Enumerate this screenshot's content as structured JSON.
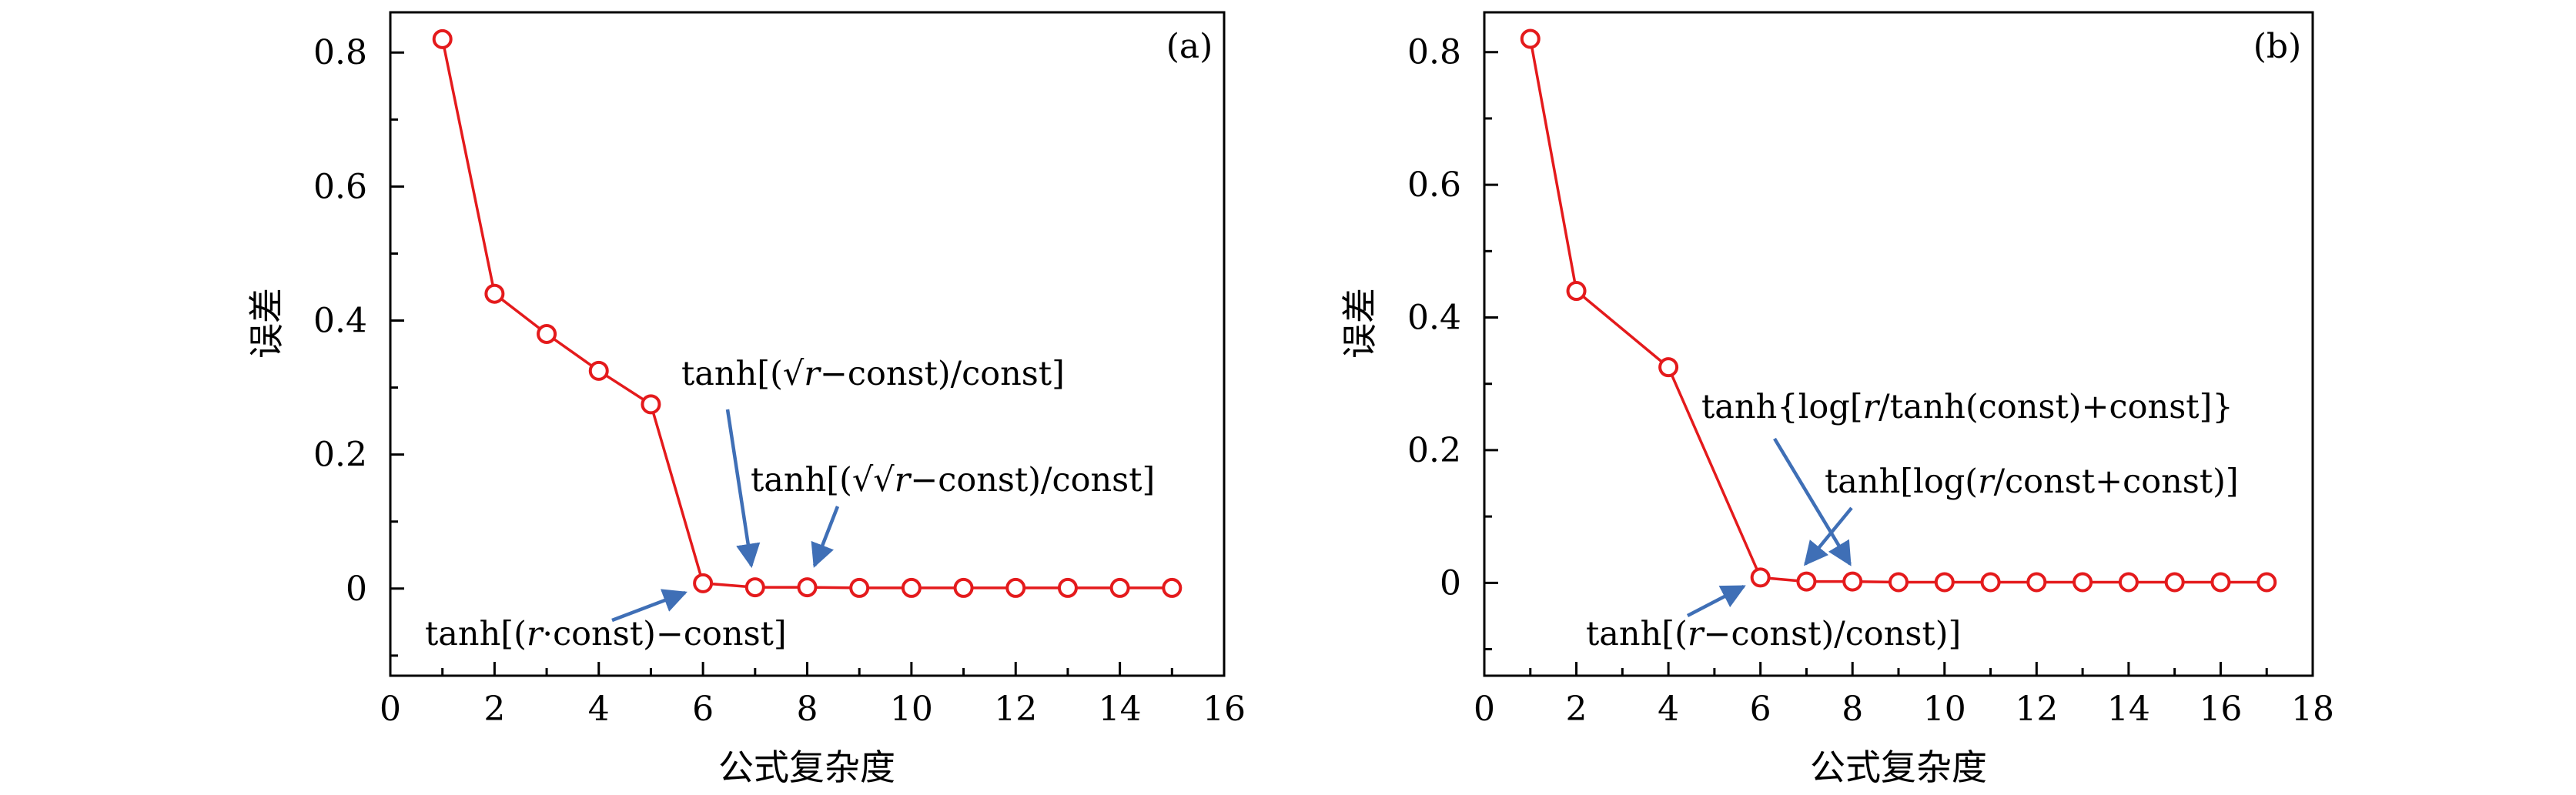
{
  "chart_data": [
    {
      "type": "line",
      "panel_label": "(a)",
      "xlabel": "公式复杂度",
      "ylabel": "误差",
      "xlim": [
        0,
        16
      ],
      "ylim": [
        -0.13,
        0.86
      ],
      "xticks": [
        0,
        2,
        4,
        6,
        8,
        10,
        12,
        14,
        16
      ],
      "yticks": [
        0,
        0.2,
        0.4,
        0.6,
        0.8
      ],
      "xtick_labels": [
        "0",
        "2",
        "4",
        "6",
        "8",
        "10",
        "12",
        "14",
        "16"
      ],
      "ytick_labels": [
        "0",
        "0.2",
        "0.4",
        "0.6",
        "0.8"
      ],
      "series": [
        {
          "name": "误差",
          "color": "#e41a1c",
          "x": [
            1,
            2,
            3,
            4,
            5,
            6,
            7,
            8,
            9,
            10,
            11,
            12,
            13,
            14,
            15
          ],
          "y": [
            0.82,
            0.44,
            0.38,
            0.325,
            0.275,
            0.008,
            0.002,
            0.002,
            0.001,
            0.001,
            0.001,
            0.001,
            0.001,
            0.001,
            0.001
          ]
        }
      ],
      "annotations": [
        {
          "text": "tanh[(√r−const)/const]",
          "target": [
            7,
            0.002
          ]
        },
        {
          "text": "tanh[(√√r−const)/const]",
          "target": [
            8,
            0.002
          ]
        },
        {
          "text": "tanh[(r·const)−const]",
          "target": [
            6,
            0.008
          ]
        }
      ]
    },
    {
      "type": "line",
      "panel_label": "(b)",
      "xlabel": "公式复杂度",
      "ylabel": "误差",
      "xlim": [
        0,
        18
      ],
      "ylim": [
        -0.14,
        0.86
      ],
      "xticks": [
        0,
        2,
        4,
        6,
        8,
        10,
        12,
        14,
        16,
        18
      ],
      "yticks": [
        0,
        0.2,
        0.4,
        0.6,
        0.8
      ],
      "xtick_labels": [
        "0",
        "2",
        "4",
        "6",
        "8",
        "10",
        "12",
        "14",
        "16",
        "18"
      ],
      "ytick_labels": [
        "0",
        "0.2",
        "0.4",
        "0.6",
        "0.8"
      ],
      "series": [
        {
          "name": "误差",
          "color": "#e41a1c",
          "x": [
            1,
            2,
            4,
            6,
            7,
            8,
            9,
            10,
            11,
            12,
            13,
            14,
            15,
            16,
            17
          ],
          "y": [
            0.82,
            0.44,
            0.325,
            0.008,
            0.002,
            0.002,
            0.001,
            0.001,
            0.001,
            0.001,
            0.001,
            0.001,
            0.001,
            0.001,
            0.001
          ]
        }
      ],
      "annotations": [
        {
          "text": "tanh{log[r/tanh(const)+const]}",
          "target": [
            8,
            0.002
          ]
        },
        {
          "text": "tanh[log(r/const+const)]",
          "target": [
            7,
            0.002
          ]
        },
        {
          "text": "tanh[(r−const)/const)]",
          "target": [
            6,
            0.008
          ]
        }
      ]
    }
  ]
}
